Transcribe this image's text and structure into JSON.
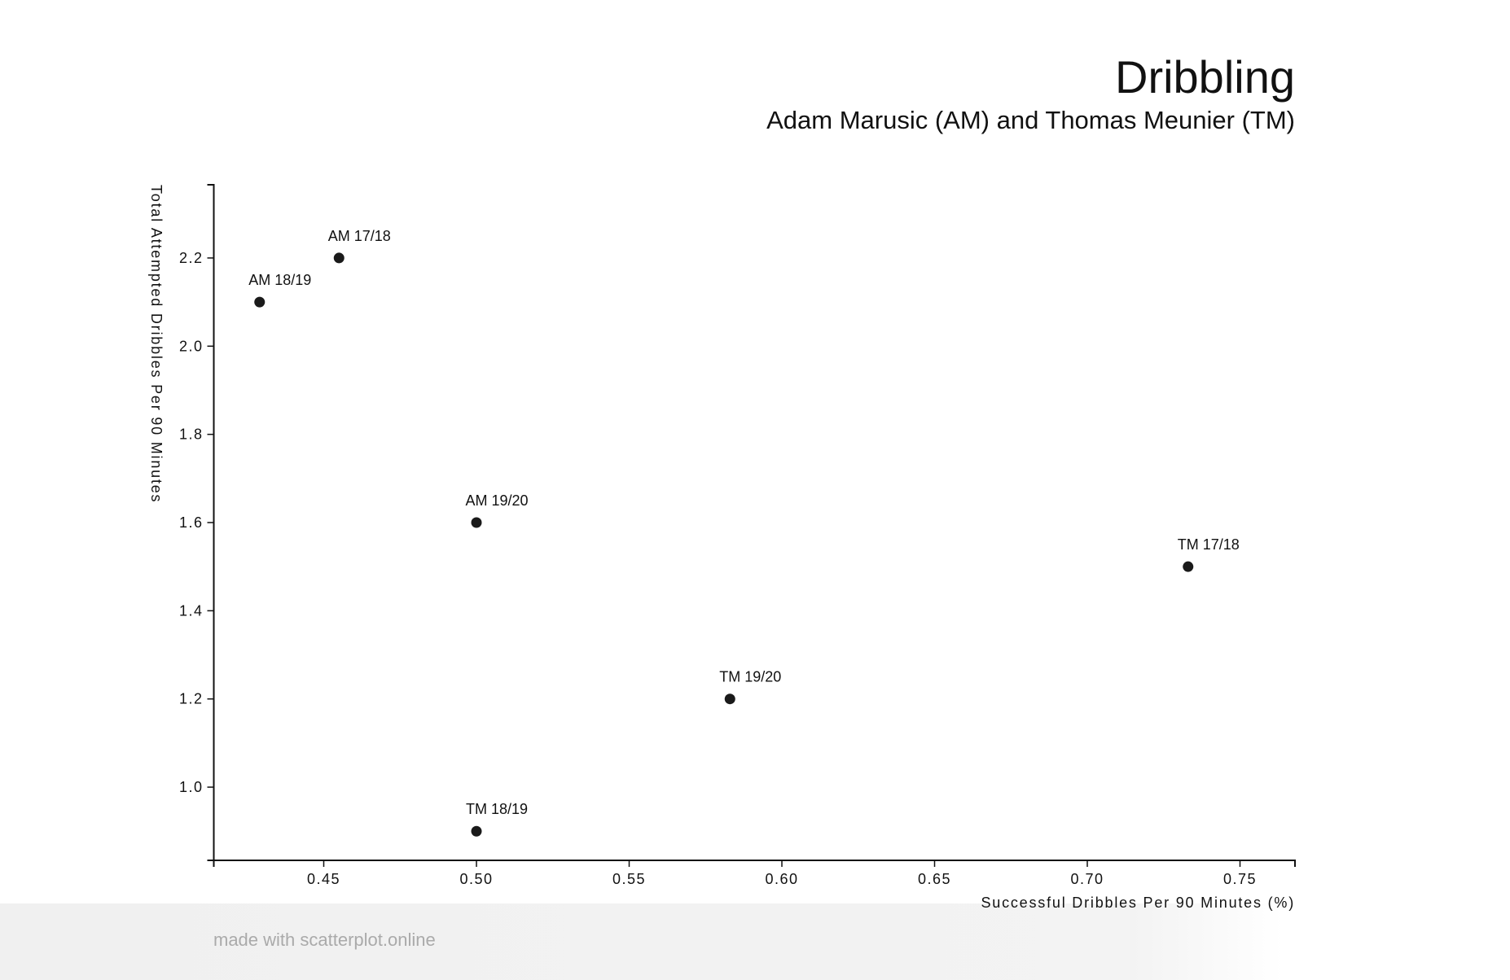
{
  "chart_data": {
    "type": "scatter",
    "title": "Dribbling",
    "subtitle": "Adam Marusic (AM) and Thomas Meunier (TM)",
    "xlabel": "Successful Dribbles Per 90 Minutes (%)",
    "ylabel": "Total Attempted Dribbles Per 90 Minutes",
    "xlim": [
      0.414,
      0.768
    ],
    "ylim": [
      0.834,
      2.366
    ],
    "xticks": [
      "0.45",
      "0.50",
      "0.55",
      "0.60",
      "0.65",
      "0.70",
      "0.75"
    ],
    "yticks": [
      "1.0",
      "1.2",
      "1.4",
      "1.6",
      "1.8",
      "2.0",
      "2.2"
    ],
    "grid": false,
    "point_color": "#1a1a1a",
    "points": [
      {
        "label": "AM 17/18",
        "x": 0.455,
        "y": 2.2
      },
      {
        "label": "AM 18/19",
        "x": 0.429,
        "y": 2.1
      },
      {
        "label": "AM 19/20",
        "x": 0.5,
        "y": 1.6
      },
      {
        "label": "TM 17/18",
        "x": 0.733,
        "y": 1.5
      },
      {
        "label": "TM 19/20",
        "x": 0.583,
        "y": 1.2
      },
      {
        "label": "TM 18/19",
        "x": 0.5,
        "y": 0.9
      }
    ]
  },
  "watermark": "made with scatterplot.online"
}
